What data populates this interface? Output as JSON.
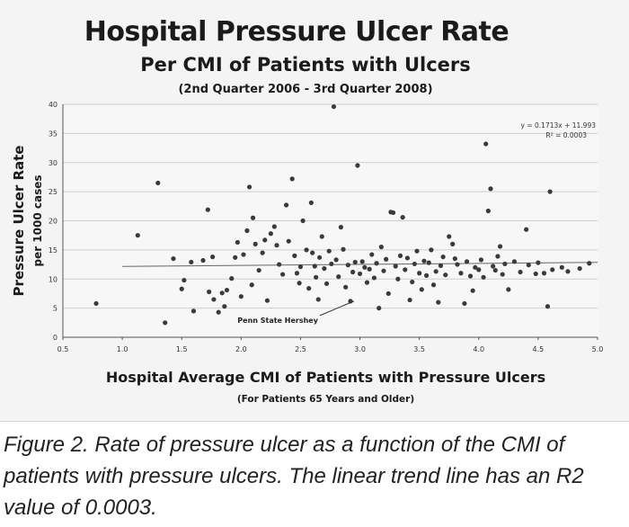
{
  "chart_data": {
    "type": "scatter",
    "title": "Hospital Pressure Ulcer Rate",
    "subtitle": "Per CMI of Patients with Ulcers",
    "period": "(2nd Quarter 2006 - 3rd Quarter 2008)",
    "xlabel": "Hospital Average CMI of Patients with Pressure Ulcers",
    "xlabel_sub": "(For Patients 65 Years and Older)",
    "ylabel": "Pressure Ulcer Rate",
    "ylabel_sub": "per 1000 cases",
    "xlim": [
      0.5,
      5.0
    ],
    "ylim": [
      0,
      40
    ],
    "xticks": [
      "0.5",
      "1.0",
      "1.5",
      "2.0",
      "2.5",
      "3.0",
      "3.5",
      "4.0",
      "4.5",
      "5.0"
    ],
    "yticks": [
      "0",
      "5",
      "10",
      "15",
      "20",
      "25",
      "30",
      "35",
      "40"
    ],
    "grid": true,
    "trendline": {
      "equation": "y = 0.1713x + 11.993",
      "r2": "R² = 0.0003",
      "slope": 0.1713,
      "intercept": 11.993
    },
    "annotation": {
      "label": "Penn State Hershey",
      "x": 2.95,
      "y": 6.2
    },
    "points": [
      [
        0.78,
        5.8
      ],
      [
        1.13,
        17.5
      ],
      [
        1.3,
        26.5
      ],
      [
        1.36,
        2.5
      ],
      [
        1.43,
        13.5
      ],
      [
        1.5,
        8.3
      ],
      [
        1.52,
        9.8
      ],
      [
        1.58,
        12.9
      ],
      [
        1.6,
        4.5
      ],
      [
        1.68,
        13.2
      ],
      [
        1.72,
        21.9
      ],
      [
        1.73,
        7.8
      ],
      [
        1.76,
        13.8
      ],
      [
        1.77,
        6.5
      ],
      [
        1.81,
        4.3
      ],
      [
        1.84,
        7.6
      ],
      [
        1.86,
        5.3
      ],
      [
        1.88,
        8.1
      ],
      [
        1.92,
        10.1
      ],
      [
        1.95,
        13.7
      ],
      [
        1.97,
        16.3
      ],
      [
        2.0,
        7.0
      ],
      [
        2.02,
        14.2
      ],
      [
        2.05,
        18.3
      ],
      [
        2.07,
        25.8
      ],
      [
        2.09,
        9.0
      ],
      [
        2.1,
        20.5
      ],
      [
        2.12,
        16.0
      ],
      [
        2.15,
        11.5
      ],
      [
        2.18,
        14.5
      ],
      [
        2.2,
        16.7
      ],
      [
        2.22,
        6.3
      ],
      [
        2.25,
        17.8
      ],
      [
        2.28,
        19.0
      ],
      [
        2.3,
        15.8
      ],
      [
        2.32,
        12.5
      ],
      [
        2.35,
        10.8
      ],
      [
        2.38,
        22.7
      ],
      [
        2.4,
        16.5
      ],
      [
        2.43,
        27.2
      ],
      [
        2.45,
        14.0
      ],
      [
        2.47,
        11.0
      ],
      [
        2.49,
        9.3
      ],
      [
        2.5,
        12.1
      ],
      [
        2.52,
        20.0
      ],
      [
        2.55,
        15.0
      ],
      [
        2.57,
        8.4
      ],
      [
        2.59,
        23.1
      ],
      [
        2.6,
        14.5
      ],
      [
        2.62,
        12.2
      ],
      [
        2.63,
        10.3
      ],
      [
        2.65,
        6.5
      ],
      [
        2.66,
        13.7
      ],
      [
        2.68,
        17.3
      ],
      [
        2.7,
        11.8
      ],
      [
        2.72,
        9.2
      ],
      [
        2.74,
        14.8
      ],
      [
        2.76,
        12.6
      ],
      [
        2.78,
        39.6
      ],
      [
        2.8,
        13.3
      ],
      [
        2.82,
        10.4
      ],
      [
        2.84,
        18.9
      ],
      [
        2.86,
        15.1
      ],
      [
        2.88,
        8.6
      ],
      [
        2.9,
        12.4
      ],
      [
        2.92,
        6.2
      ],
      [
        2.94,
        11.2
      ],
      [
        2.96,
        12.9
      ],
      [
        2.98,
        29.5
      ],
      [
        3.0,
        10.9
      ],
      [
        3.02,
        13.0
      ],
      [
        3.04,
        12.0
      ],
      [
        3.06,
        9.4
      ],
      [
        3.08,
        11.7
      ],
      [
        3.1,
        14.2
      ],
      [
        3.12,
        10.2
      ],
      [
        3.14,
        12.7
      ],
      [
        3.16,
        5.0
      ],
      [
        3.18,
        15.5
      ],
      [
        3.2,
        11.4
      ],
      [
        3.22,
        13.4
      ],
      [
        3.24,
        7.5
      ],
      [
        3.26,
        21.5
      ],
      [
        3.28,
        21.4
      ],
      [
        3.3,
        12.2
      ],
      [
        3.32,
        10.0
      ],
      [
        3.34,
        14.0
      ],
      [
        3.36,
        20.6
      ],
      [
        3.38,
        11.6
      ],
      [
        3.4,
        13.6
      ],
      [
        3.42,
        6.4
      ],
      [
        3.44,
        9.5
      ],
      [
        3.46,
        12.6
      ],
      [
        3.48,
        14.8
      ],
      [
        3.5,
        11.0
      ],
      [
        3.52,
        8.2
      ],
      [
        3.54,
        13.1
      ],
      [
        3.56,
        10.6
      ],
      [
        3.58,
        12.8
      ],
      [
        3.6,
        15.0
      ],
      [
        3.62,
        9.0
      ],
      [
        3.64,
        11.3
      ],
      [
        3.66,
        6.0
      ],
      [
        3.68,
        12.3
      ],
      [
        3.7,
        13.8
      ],
      [
        3.72,
        10.7
      ],
      [
        3.75,
        17.3
      ],
      [
        3.78,
        16.0
      ],
      [
        3.8,
        13.5
      ],
      [
        3.82,
        12.5
      ],
      [
        3.85,
        11.0
      ],
      [
        3.88,
        5.8
      ],
      [
        3.9,
        13.0
      ],
      [
        3.93,
        10.5
      ],
      [
        3.95,
        8.0
      ],
      [
        3.97,
        12.0
      ],
      [
        4.0,
        11.6
      ],
      [
        4.02,
        13.3
      ],
      [
        4.04,
        10.3
      ],
      [
        4.06,
        33.2
      ],
      [
        4.08,
        21.7
      ],
      [
        4.1,
        25.5
      ],
      [
        4.12,
        12.2
      ],
      [
        4.14,
        11.5
      ],
      [
        4.16,
        13.9
      ],
      [
        4.18,
        15.6
      ],
      [
        4.2,
        10.8
      ],
      [
        4.22,
        12.6
      ],
      [
        4.25,
        8.2
      ],
      [
        4.3,
        13.0
      ],
      [
        4.35,
        11.2
      ],
      [
        4.4,
        18.5
      ],
      [
        4.42,
        12.4
      ],
      [
        4.48,
        10.9
      ],
      [
        4.5,
        12.8
      ],
      [
        4.55,
        11.0
      ],
      [
        4.58,
        5.3
      ],
      [
        4.6,
        25.0
      ],
      [
        4.62,
        11.6
      ],
      [
        4.7,
        12.0
      ],
      [
        4.75,
        11.3
      ],
      [
        4.85,
        11.8
      ],
      [
        4.93,
        12.7
      ]
    ]
  },
  "caption": "Figure 2. Rate of pressure ulcer as a function of the CMI of patients with pressure ulcers. The linear trend line has an R2 value of 0.0003."
}
